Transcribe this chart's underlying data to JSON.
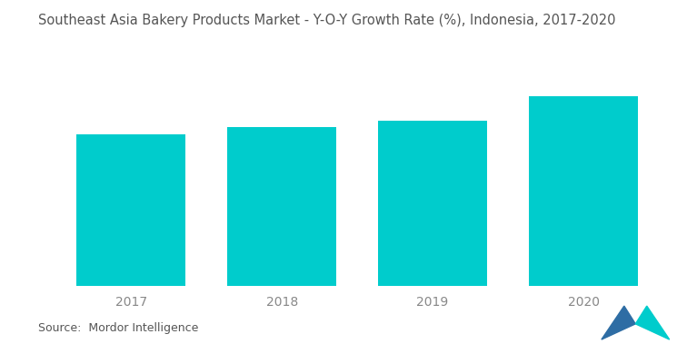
{
  "title": "Southeast Asia Bakery Products Market - Y-O-Y Growth Rate (%), Indonesia, 2017-2020",
  "categories": [
    "2017",
    "2018",
    "2019",
    "2020"
  ],
  "values": [
    5.2,
    5.45,
    5.65,
    6.5
  ],
  "bar_color": "#00CCCC",
  "background_color": "#ffffff",
  "source_text": "Source:  Mordor Intelligence",
  "title_fontsize": 10.5,
  "tick_fontsize": 10,
  "source_fontsize": 9,
  "bar_width": 0.72,
  "ylim": [
    0,
    7.2
  ],
  "figsize": [
    7.56,
    3.79
  ],
  "logo_tri1_color": "#2E6DA4",
  "logo_tri2_color": "#00CCCC"
}
